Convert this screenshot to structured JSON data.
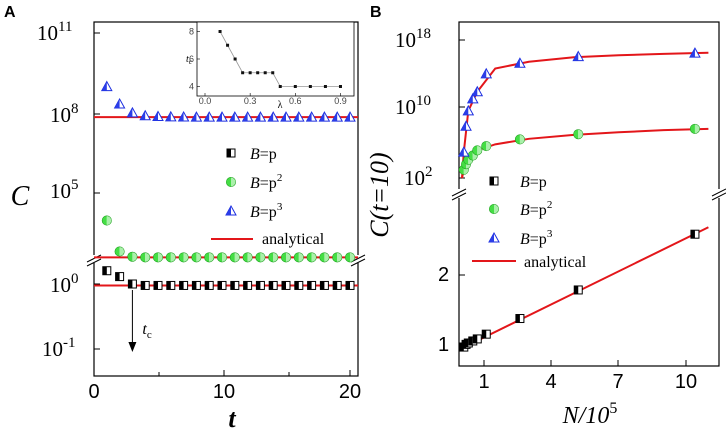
{
  "panels": [
    {
      "label": "A"
    },
    {
      "label": "B"
    }
  ],
  "chart_data": [
    {
      "panel": "A",
      "type": "scatter",
      "xlabel": "t",
      "ylabel": "C",
      "x_ticks": [
        "0",
        "10",
        "20"
      ],
      "y_ticks_log": [
        {
          "base": "10",
          "exp": "11"
        },
        {
          "base": "10",
          "exp": "8"
        },
        {
          "base": "10",
          "exp": "5"
        },
        {
          "base": "10",
          "exp": "0"
        },
        {
          "base": "10",
          "exp": "-1"
        }
      ],
      "legend": [
        "B=p",
        "B=p²",
        "B=p³",
        "analytical"
      ],
      "legend_parts": [
        {
          "pre": "B",
          "eq": "=p",
          "sup": ""
        },
        {
          "pre": "B",
          "eq": "=p",
          "sup": "2"
        },
        {
          "pre": "B",
          "eq": "=p",
          "sup": "3"
        }
      ],
      "legend_analytical": "analytical",
      "annotation": {
        "text": "t",
        "sub": "c",
        "x": 3
      },
      "series": [
        {
          "name": "B=p",
          "x": [
            1,
            2,
            3,
            4,
            5,
            6,
            7,
            8,
            9,
            10,
            11,
            12,
            13,
            14,
            15,
            16,
            17,
            18,
            19,
            20
          ],
          "y": [
            1.6,
            1.3,
            1.0,
            0.95,
            0.95,
            0.95,
            0.95,
            0.95,
            0.95,
            0.95,
            0.95,
            0.95,
            0.95,
            0.95,
            0.95,
            0.95,
            0.95,
            0.95,
            0.95,
            0.95
          ]
        },
        {
          "name": "B=p²",
          "x": [
            1,
            2,
            3,
            4,
            5,
            6,
            7,
            8,
            9,
            10,
            11,
            12,
            13,
            14,
            15,
            16,
            17,
            18,
            19,
            20
          ],
          "y": [
            9000,
            600,
            380,
            360,
            360,
            360,
            360,
            360,
            360,
            360,
            360,
            360,
            360,
            360,
            360,
            360,
            360,
            360,
            360,
            360
          ]
        },
        {
          "name": "B=p³",
          "x": [
            1,
            2,
            3,
            4,
            5,
            6,
            7,
            8,
            9,
            10,
            11,
            12,
            13,
            14,
            15,
            16,
            17,
            18,
            19,
            20
          ],
          "y": [
            1100000000.0,
            240000000.0,
            110000000.0,
            86000000.0,
            80000000.0,
            78000000.0,
            77000000.0,
            76000000.0,
            76000000.0,
            76000000.0,
            76000000.0,
            76000000.0,
            76000000.0,
            76000000.0,
            76000000.0,
            76000000.0,
            76000000.0,
            76000000.0,
            76000000.0,
            76000000.0
          ]
        }
      ],
      "analytical": [
        {
          "name": "B=p",
          "y": 0.95
        },
        {
          "name": "B=p²",
          "y": 360
        },
        {
          "name": "B=p³",
          "y": 76000000.0
        }
      ],
      "inset": {
        "xlabel": "λ",
        "ylabel": "t",
        "ylabel_sub": "c",
        "x_ticks": [
          "0.0",
          "0.3",
          "0.6",
          "0.9"
        ],
        "y_ticks": [
          "4",
          "6",
          "8"
        ],
        "xlim": [
          0,
          0.95
        ],
        "ylim": [
          3.6,
          8.4
        ],
        "x": [
          0.1,
          0.15,
          0.2,
          0.25,
          0.3,
          0.35,
          0.4,
          0.45,
          0.5,
          0.6,
          0.7,
          0.8,
          0.9
        ],
        "y": [
          8,
          7,
          6,
          5,
          5,
          5,
          5,
          5,
          4,
          4,
          4,
          4,
          4
        ]
      }
    },
    {
      "panel": "B",
      "type": "scatter",
      "xlabel": "N/10",
      "xlabel_sup": "5",
      "ylabel": "C(t=10)",
      "x_ticks": [
        "1",
        "4",
        "7",
        "10"
      ],
      "y_ticks_top": [
        {
          "base": "10",
          "exp": "18"
        },
        {
          "base": "10",
          "exp": "10"
        },
        {
          "base": "10",
          "exp": "2"
        }
      ],
      "y_ticks_bottom": [
        "2",
        "1"
      ],
      "legend": [
        "B=p",
        "B=p²",
        "B=p³",
        "analytical"
      ],
      "legend_parts": [
        {
          "pre": "B",
          "eq": "=p",
          "sup": ""
        },
        {
          "pre": "B",
          "eq": "=p",
          "sup": "2"
        },
        {
          "pre": "B",
          "eq": "=p",
          "sup": "3"
        }
      ],
      "legend_analytical": "analytical",
      "series": [
        {
          "name": "B=p",
          "x": [
            0.1,
            0.2,
            0.3,
            0.5,
            0.7,
            1.1,
            2.6,
            5.2,
            10.4
          ],
          "y": [
            0.94,
            0.98,
            1.0,
            1.03,
            1.06,
            1.13,
            1.36,
            1.78,
            2.6
          ]
        },
        {
          "name": "B=p²",
          "x": [
            0.1,
            0.2,
            0.3,
            0.5,
            0.7,
            1.1,
            2.6,
            5.2,
            10.4
          ],
          "y": [
            900.0,
            4000.0,
            13000.0,
            40000.0,
            160000.0,
            500000.0,
            3000000.0,
            12000000.0,
            50000000.0
          ]
        },
        {
          "name": "B=p³",
          "x": [
            0.1,
            0.2,
            0.3,
            0.5,
            0.7,
            1.1,
            2.6,
            5.2,
            10.4
          ],
          "y": [
            100000.0,
            100000000.0,
            6000000000.0,
            150000000000.0,
            1000000000000.0,
            120000000000000.0,
            2000000000000000.0,
            1.2e+16,
            3e+16
          ]
        }
      ],
      "analytical": {
        "B=p": {
          "slope": 0.162,
          "intercept": 0.92
        },
        "B=p²": {
          "x": [
            0.02,
            0.1,
            0.3,
            0.7,
            1.5,
            3,
            5,
            7,
            9,
            11
          ],
          "y": [
            100.0,
            900.0,
            13000.0,
            160000.0,
            800000.0,
            3500000.0,
            10000000.0,
            20000000.0,
            35000000.0,
            50000000.0
          ]
        },
        "B=p³": {
          "x": [
            0.02,
            0.1,
            0.3,
            0.7,
            1.5,
            3,
            5,
            7,
            9,
            11
          ],
          "y": [
            100.0,
            100000.0,
            6000000000.0,
            1000000000000.0,
            500000000000000.0,
            3000000000000000.0,
            1e+16,
            1.7e+16,
            2.5e+16,
            3.3e+16
          ]
        }
      }
    }
  ]
}
